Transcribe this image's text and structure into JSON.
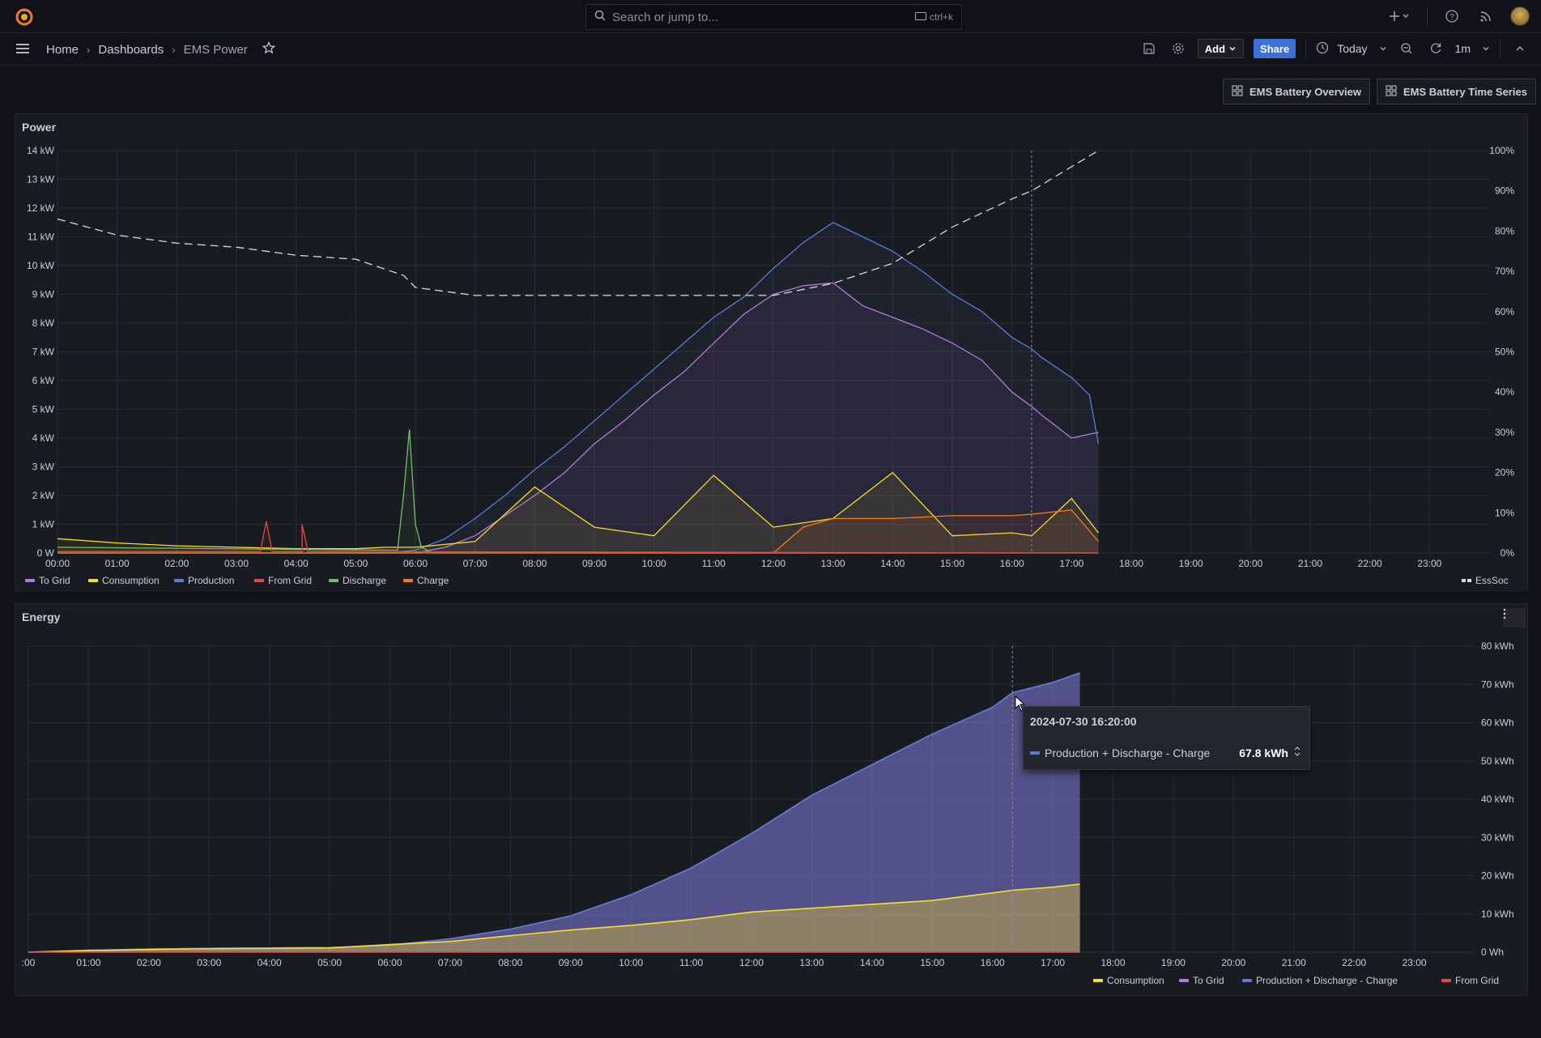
{
  "topbar": {
    "search_placeholder": "Search or jump to...",
    "search_shortcut": "ctrl+k"
  },
  "breadcrumb": {
    "home": "Home",
    "dashboards": "Dashboards",
    "current": "EMS Power"
  },
  "toolbar": {
    "add_label": "Add",
    "share_label": "Share",
    "time_range": "Today",
    "refresh_interval": "1m"
  },
  "links": {
    "battery_overview": "EMS Battery Overview",
    "battery_timeseries": "EMS Battery Time Series"
  },
  "power_panel": {
    "title": "Power",
    "legend_right": "EssSoc"
  },
  "energy_panel": {
    "title": "Energy"
  },
  "tooltip": {
    "time": "2024-07-30 16:20:00",
    "series": "Production + Discharge - Charge",
    "value": "67.8 kWh"
  },
  "colors": {
    "to_grid": "#b877d9",
    "consumption": "#fade2a",
    "production": "#5a7bd8",
    "from_grid": "#e0474f",
    "discharge": "#73bf69",
    "charge": "#ff780a",
    "ess_soc": "#d8d9da"
  },
  "chart_data": [
    {
      "type": "line",
      "title": "Power",
      "x_ticks": [
        "00:00",
        "01:00",
        "02:00",
        "03:00",
        "04:00",
        "05:00",
        "06:00",
        "07:00",
        "08:00",
        "09:00",
        "10:00",
        "11:00",
        "12:00",
        "13:00",
        "14:00",
        "15:00",
        "16:00",
        "17:00",
        "18:00",
        "19:00",
        "20:00",
        "21:00",
        "22:00",
        "23:00"
      ],
      "y_ticks": [
        "0 W",
        "1 kW",
        "2 kW",
        "3 kW",
        "4 kW",
        "5 kW",
        "6 kW",
        "7 kW",
        "8 kW",
        "9 kW",
        "10 kW",
        "11 kW",
        "12 kW",
        "13 kW",
        "14 kW"
      ],
      "y2_ticks": [
        "0%",
        "10%",
        "20%",
        "30%",
        "40%",
        "50%",
        "60%",
        "70%",
        "80%",
        "90%",
        "100%"
      ],
      "ylim": [
        0,
        14000
      ],
      "y2lim": [
        0,
        100
      ],
      "legend": [
        "To Grid",
        "Consumption",
        "Production",
        "From Grid",
        "Discharge",
        "Charge"
      ],
      "series": [
        {
          "name": "Production",
          "color": "#5a7bd8",
          "x": [
            0,
            5.5,
            6,
            6.5,
            7,
            7.5,
            8,
            8.5,
            9,
            9.5,
            10,
            10.5,
            11,
            11.5,
            12,
            12.5,
            13,
            13.5,
            14,
            14.5,
            15,
            15.5,
            16,
            16.33,
            16.5,
            17,
            17.3,
            17.45
          ],
          "values": [
            0,
            0,
            100,
            500,
            1200,
            2000,
            2900,
            3700,
            4600,
            5500,
            6400,
            7300,
            8200,
            8900,
            9900,
            10800,
            11500,
            11000,
            10500,
            9800,
            9000,
            8400,
            7500,
            7100,
            6800,
            6100,
            5500,
            3800
          ]
        },
        {
          "name": "To Grid",
          "color": "#b877d9",
          "x": [
            0,
            6,
            6.5,
            7,
            7.5,
            8,
            8.5,
            9,
            9.5,
            10,
            10.5,
            11,
            11.5,
            12,
            12.5,
            13,
            13.5,
            14,
            14.5,
            15,
            15.5,
            16,
            16.33,
            16.5,
            17,
            17.45
          ],
          "values": [
            0,
            0,
            200,
            600,
            1300,
            2000,
            2800,
            3800,
            4600,
            5500,
            6300,
            7300,
            8300,
            9000,
            9300,
            9400,
            8600,
            8200,
            7800,
            7300,
            6700,
            5600,
            5100,
            4800,
            4000,
            4200
          ]
        },
        {
          "name": "Consumption",
          "color": "#fade2a",
          "x": [
            0,
            1,
            2,
            3,
            4,
            5,
            5.5,
            6,
            7,
            8,
            9,
            10,
            11,
            12,
            13,
            14,
            15,
            16,
            16.33,
            17,
            17.45
          ],
          "values": [
            500,
            350,
            250,
            200,
            150,
            150,
            200,
            200,
            400,
            2300,
            900,
            600,
            2700,
            900,
            1200,
            2800,
            600,
            700,
            600,
            1900,
            700
          ]
        },
        {
          "name": "Discharge",
          "color": "#73bf69",
          "x": [
            0,
            5.7,
            5.8,
            5.9,
            6,
            6.1,
            6.3,
            17.45
          ],
          "values": [
            200,
            100,
            2000,
            4300,
            1000,
            200,
            0,
            0
          ]
        },
        {
          "name": "Charge",
          "color": "#ff780a",
          "x": [
            0,
            12,
            12.5,
            13,
            14,
            15,
            16,
            16.33,
            17,
            17.45
          ],
          "values": [
            0,
            0,
            900,
            1200,
            1200,
            1300,
            1300,
            1350,
            1500,
            400
          ]
        },
        {
          "name": "From Grid",
          "color": "#e0474f",
          "x": [
            0,
            3.4,
            3.5,
            3.6,
            4.1,
            4.1,
            4.2,
            17.45
          ],
          "values": [
            50,
            50,
            1100,
            50,
            50,
            1000,
            50,
            0
          ]
        },
        {
          "name": "EssSoc",
          "color": "#d8d9da",
          "axis": "right",
          "x": [
            0,
            1,
            2,
            3,
            4,
            5,
            5.8,
            6,
            7,
            8,
            9,
            10,
            11,
            12,
            13,
            14,
            15,
            16,
            16.33,
            17,
            17.45
          ],
          "values": [
            83,
            79,
            77,
            76,
            74,
            73,
            69,
            66,
            64,
            64,
            64,
            64,
            64,
            64,
            67,
            72,
            81,
            88,
            90,
            96,
            100
          ]
        }
      ]
    },
    {
      "type": "area",
      "title": "Energy",
      "x_ticks": [
        ":00",
        "01:00",
        "02:00",
        "03:00",
        "04:00",
        "05:00",
        "06:00",
        "07:00",
        "08:00",
        "09:00",
        "10:00",
        "11:00",
        "12:00",
        "13:00",
        "14:00",
        "15:00",
        "16:00",
        "17:00",
        "18:00",
        "19:00",
        "20:00",
        "21:00",
        "22:00",
        "23:00"
      ],
      "y_ticks": [
        "0 Wh",
        "10 kWh",
        "20 kWh",
        "30 kWh",
        "40 kWh",
        "50 kWh",
        "60 kWh",
        "70 kWh",
        "80 kWh"
      ],
      "ylim": [
        0,
        80000
      ],
      "legend": [
        "Consumption",
        "To Grid",
        "Production + Discharge - Charge",
        "From Grid"
      ],
      "series": [
        {
          "name": "To Grid",
          "color": "#b877d9",
          "x": [
            0,
            1,
            2,
            3,
            4,
            5,
            6,
            7,
            8,
            9,
            10,
            11,
            12,
            13,
            14,
            15,
            16,
            16.33,
            17,
            17.45
          ],
          "values": [
            0,
            500,
            800,
            1000,
            1100,
            1200,
            1800,
            3500,
            6000,
            9500,
            15000,
            22000,
            31000,
            41000,
            49000,
            57000,
            64000,
            67800,
            70500,
            73000
          ]
        },
        {
          "name": "Production + Discharge - Charge",
          "color": "#5a7bd8",
          "x": [
            0,
            1,
            2,
            3,
            4,
            5,
            6,
            7,
            8,
            9,
            10,
            11,
            12,
            13,
            14,
            15,
            16,
            16.33,
            17,
            17.45
          ],
          "values": [
            0,
            500,
            800,
            1000,
            1100,
            1200,
            1800,
            3500,
            6000,
            9500,
            15000,
            22000,
            31000,
            41000,
            49000,
            57000,
            64000,
            67800,
            70500,
            73000
          ]
        },
        {
          "name": "Consumption",
          "color": "#fade2a",
          "x": [
            0,
            1,
            2,
            3,
            4,
            5,
            6,
            7,
            8,
            9,
            10,
            11,
            12,
            13,
            14,
            15,
            16,
            16.33,
            17,
            17.45
          ],
          "values": [
            0,
            400,
            700,
            900,
            1000,
            1100,
            2000,
            2800,
            4300,
            5800,
            7000,
            8500,
            10500,
            11500,
            12500,
            13500,
            15500,
            16200,
            17000,
            17800
          ]
        },
        {
          "name": "From Grid",
          "color": "#e0474f",
          "x": [
            0,
            17.45
          ],
          "values": [
            0,
            0
          ]
        }
      ]
    }
  ]
}
